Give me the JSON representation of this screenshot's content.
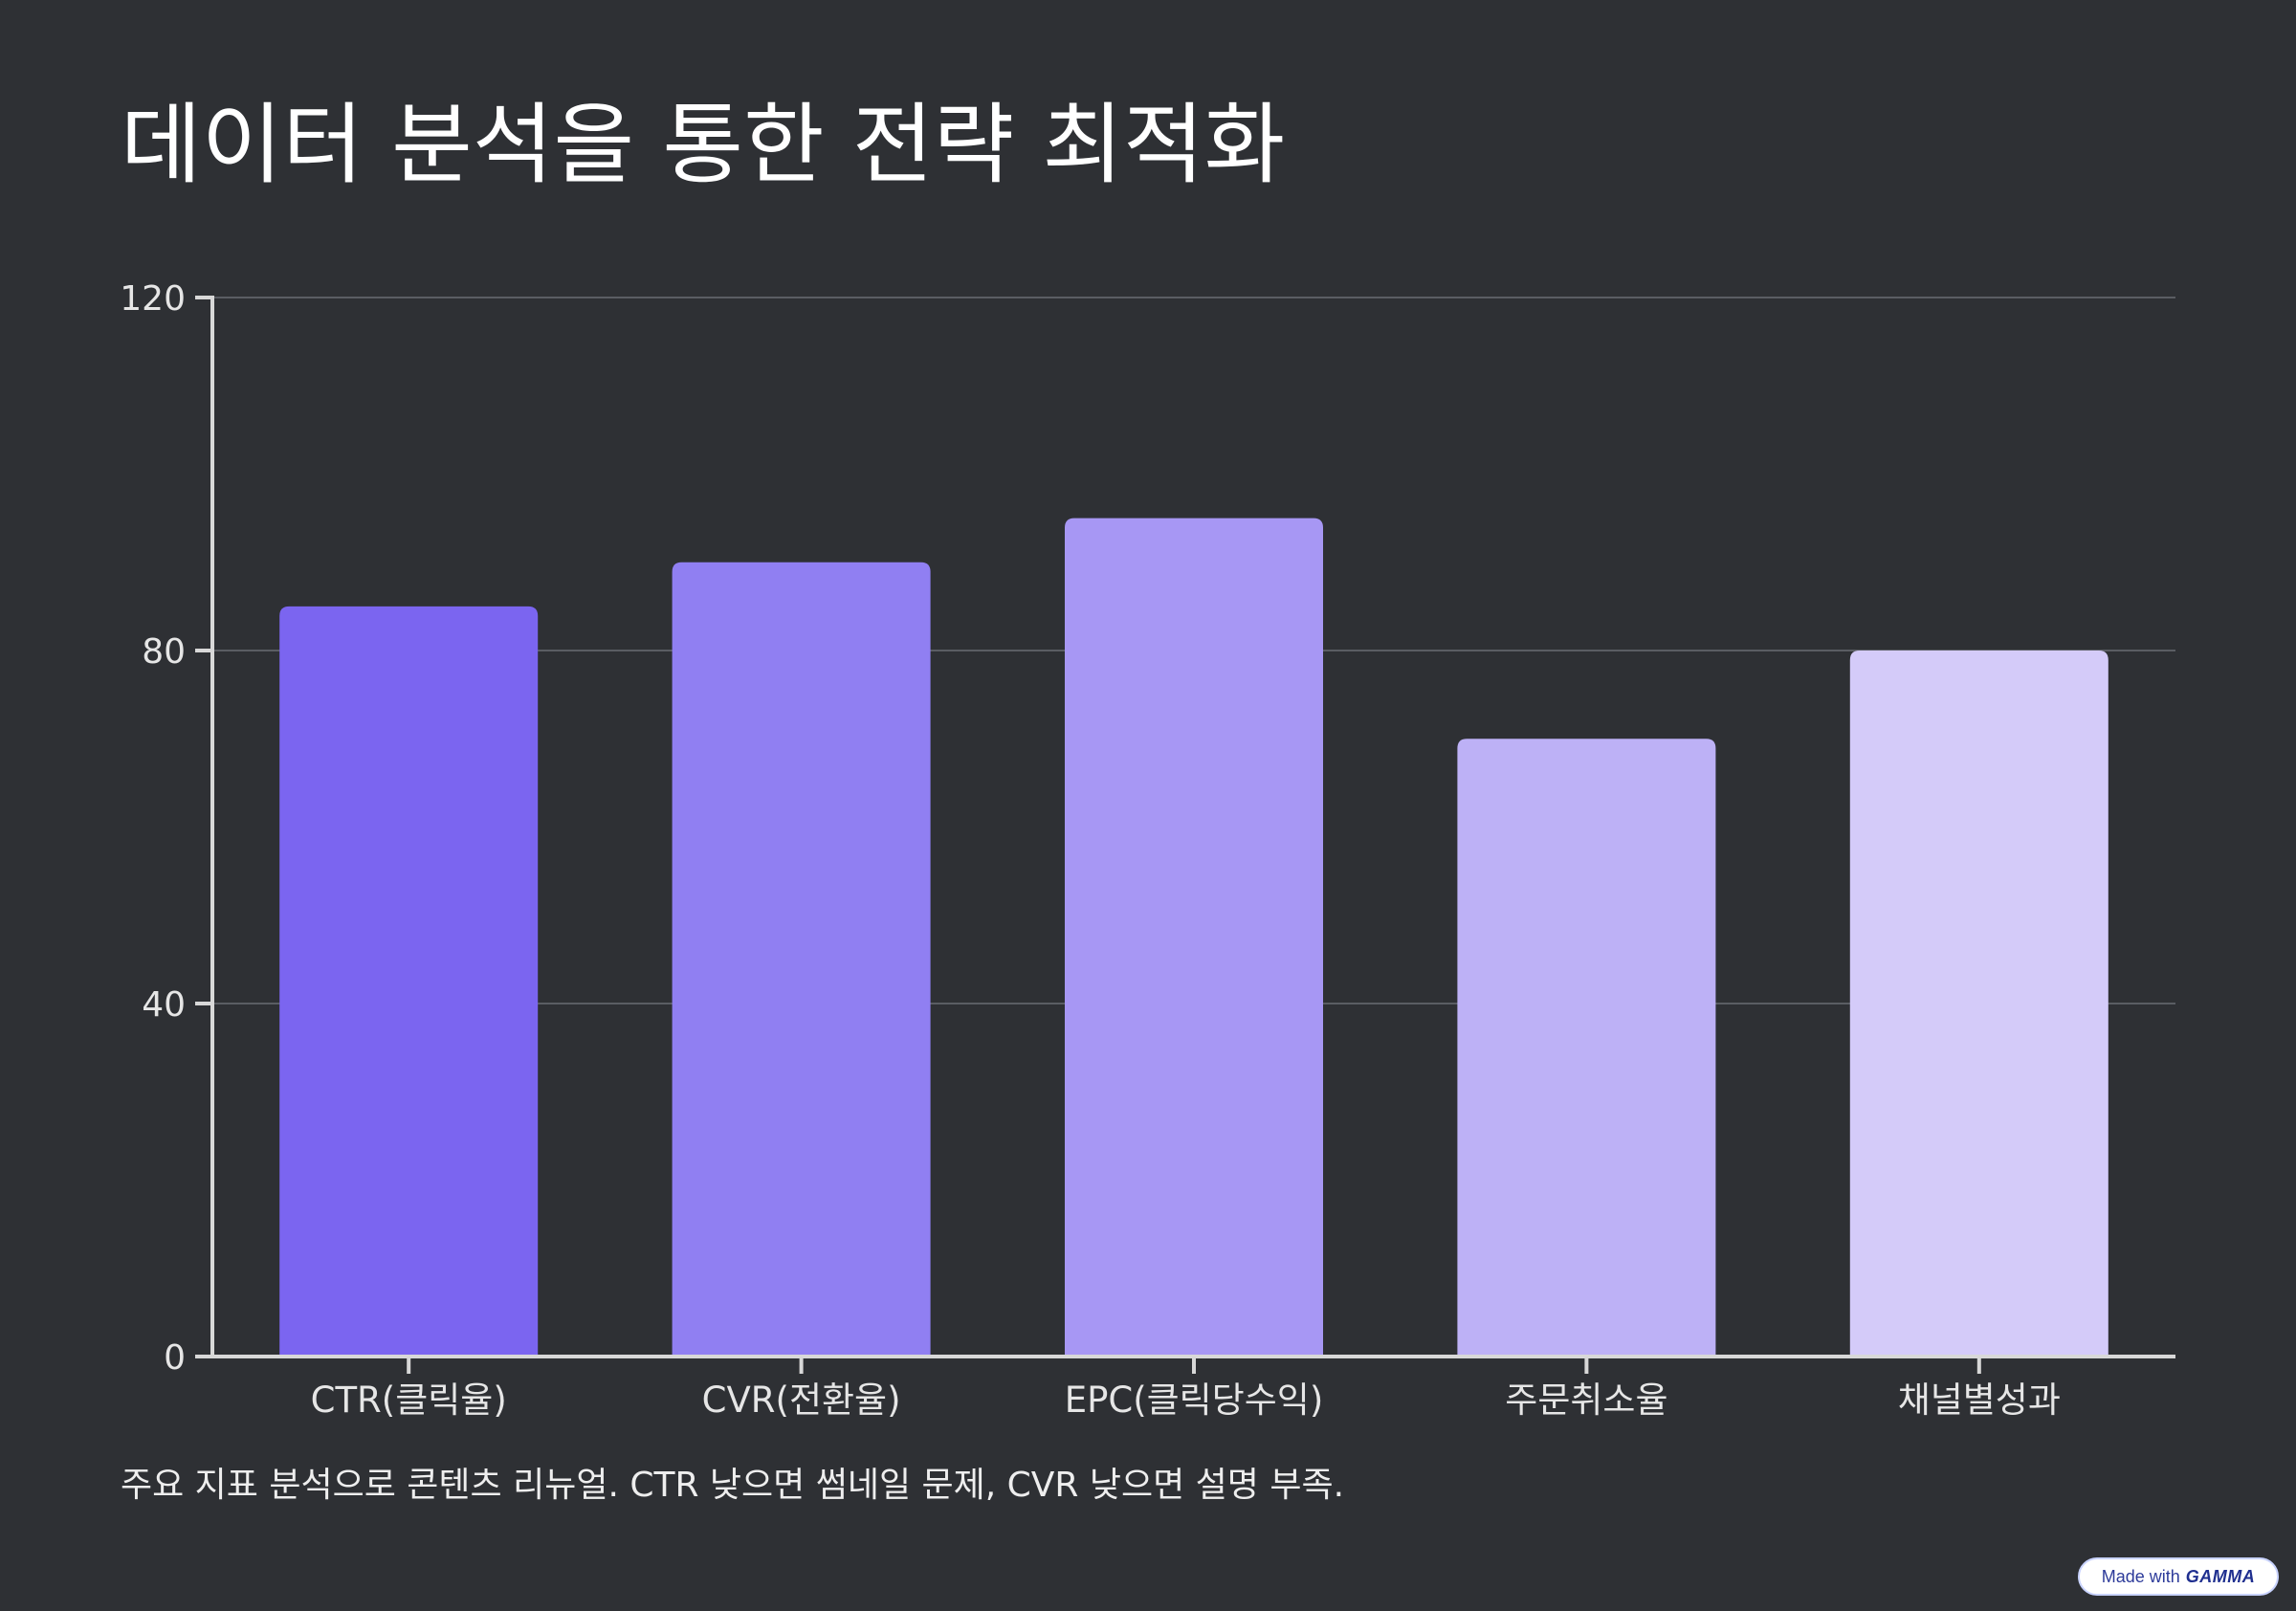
{
  "title": "데이터 분석을 통한 전략 최적화",
  "caption": "주요 지표 분석으로 콘텐츠 리뉴얼. CTR 낮으면 썸네일 문제, CVR 낮으면 설명 부족.",
  "badge": {
    "prefix": "Made with",
    "brand": "GAMMA"
  },
  "chart_data": {
    "type": "bar",
    "categories": [
      "CTR(클릭율)",
      "CVR(전환율)",
      "EPC(클릭당수익)",
      "주문취소율",
      "채널별성과"
    ],
    "values": [
      85,
      90,
      95,
      70,
      80
    ],
    "ylim": [
      0,
      120
    ],
    "yticks": [
      0,
      40,
      80,
      120
    ],
    "grid": true,
    "colors": [
      "#7b65f0",
      "#907ff2",
      "#a797f4",
      "#bdb1f6",
      "#d4cbf9"
    ],
    "title": "",
    "xlabel": "",
    "ylabel": ""
  }
}
